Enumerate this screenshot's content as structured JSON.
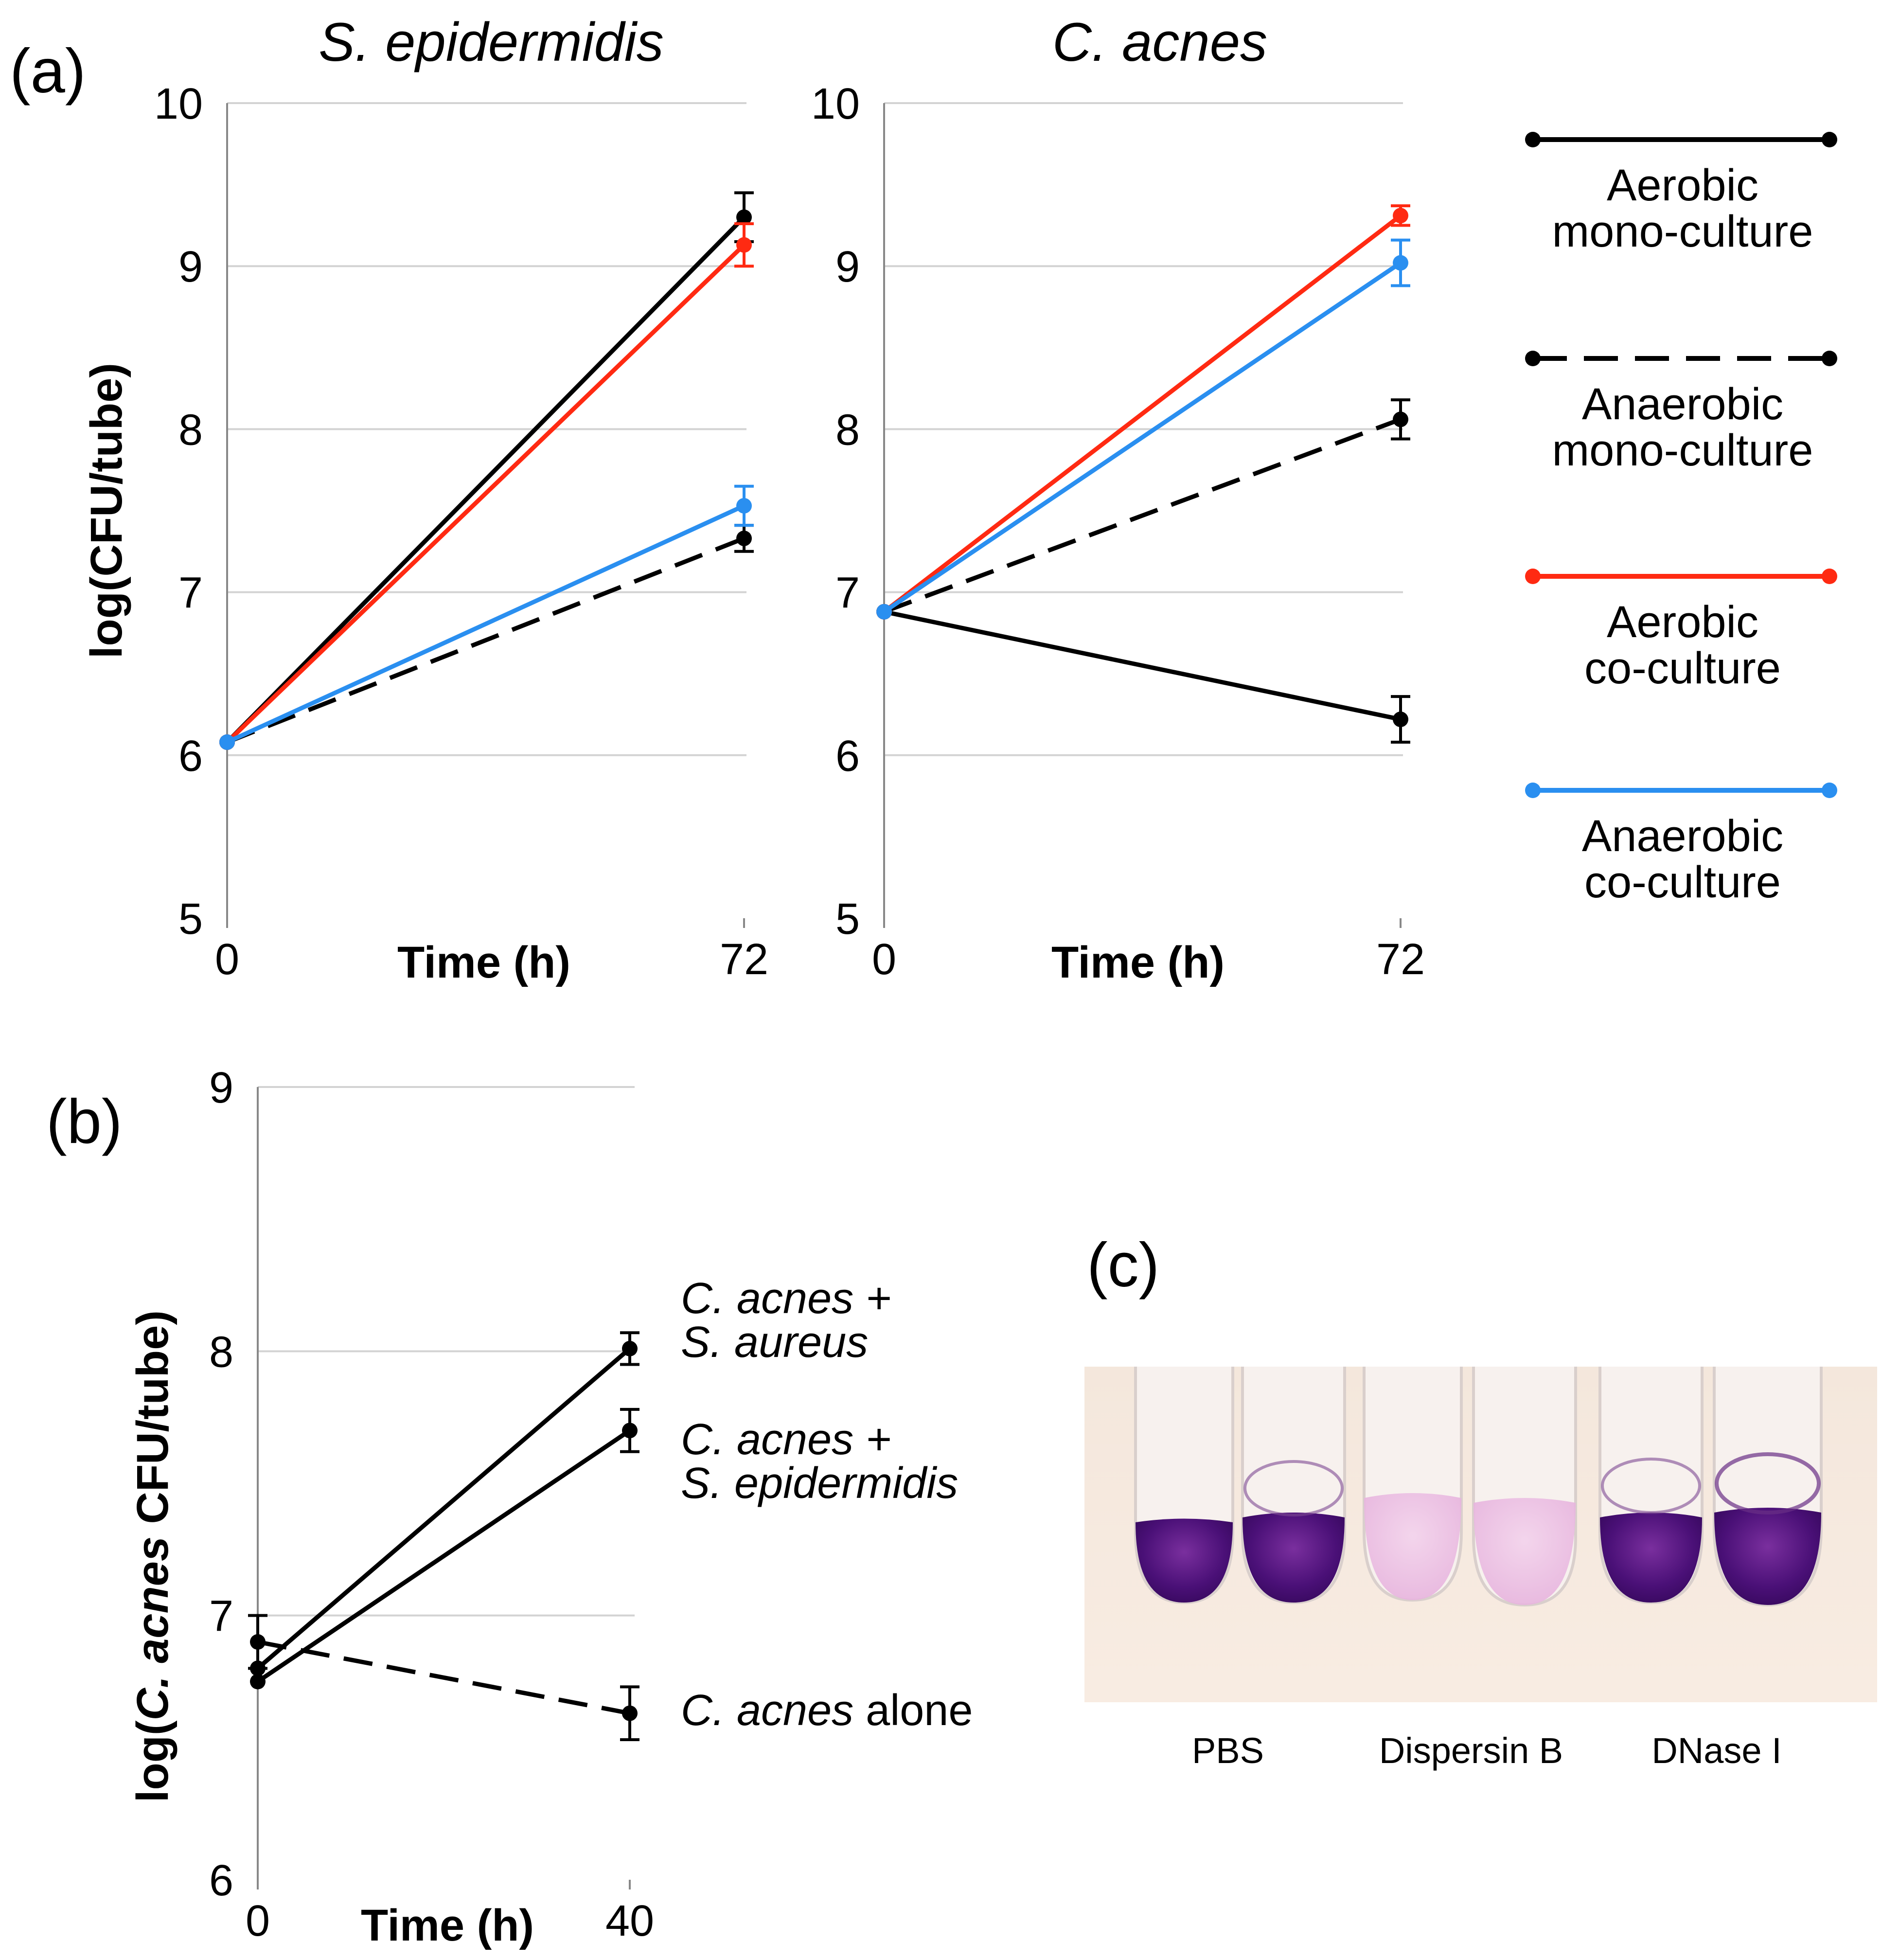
{
  "panels": {
    "a": {
      "label": "(a)"
    },
    "b": {
      "label": "(b)"
    },
    "c": {
      "label": "(c)"
    }
  },
  "legend": [
    {
      "line1": "Aerobic",
      "line2": "mono-culture",
      "color": "#000000",
      "dashed": false
    },
    {
      "line1": "Anaerobic",
      "line2": "mono-culture",
      "color": "#000000",
      "dashed": true
    },
    {
      "line1": "Aerobic",
      "line2": "co-culture",
      "color": "#ff2a12",
      "dashed": false
    },
    {
      "line1": "Anaerobic",
      "line2": "co-culture",
      "color": "#2a8ff0",
      "dashed": false
    }
  ],
  "colors": {
    "black": "#000000",
    "red": "#ff2a12",
    "blue": "#2a8ff0",
    "grid": "#d3d3d3"
  },
  "chart_data": [
    {
      "type": "line",
      "panel": "(a)",
      "title": "S. epidermidis",
      "ylabel": "log(CFU/tube)",
      "xlabel": "Time (h)",
      "x": [
        0,
        72
      ],
      "x_tick_labels": [
        "0",
        "72"
      ],
      "ylim": [
        5,
        10
      ],
      "y_ticks": [
        5,
        6,
        7,
        8,
        9,
        10
      ],
      "grid": true,
      "series": [
        {
          "name": "Aerobic mono-culture",
          "color": "#000000",
          "dashed": false,
          "values": [
            6.08,
            9.3
          ],
          "errors": [
            0.0,
            0.15
          ]
        },
        {
          "name": "Anaerobic mono-culture",
          "color": "#000000",
          "dashed": true,
          "values": [
            6.08,
            7.33
          ],
          "errors": [
            0.0,
            0.08
          ]
        },
        {
          "name": "Aerobic co-culture",
          "color": "#ff2a12",
          "dashed": false,
          "values": [
            6.08,
            9.13
          ],
          "errors": [
            0.0,
            0.13
          ]
        },
        {
          "name": "Anaerobic co-culture",
          "color": "#2a8ff0",
          "dashed": false,
          "values": [
            6.08,
            7.53
          ],
          "errors": [
            0.0,
            0.12
          ]
        }
      ]
    },
    {
      "type": "line",
      "panel": "(a)",
      "title": "C. acnes",
      "ylabel": "",
      "xlabel": "Time (h)",
      "x": [
        0,
        72
      ],
      "x_tick_labels": [
        "0",
        "72"
      ],
      "ylim": [
        5,
        10
      ],
      "y_ticks": [
        5,
        6,
        7,
        8,
        9,
        10
      ],
      "grid": true,
      "series": [
        {
          "name": "Aerobic mono-culture",
          "color": "#000000",
          "dashed": false,
          "values": [
            6.88,
            6.22
          ],
          "errors": [
            0.0,
            0.14
          ]
        },
        {
          "name": "Anaerobic mono-culture",
          "color": "#000000",
          "dashed": true,
          "values": [
            6.88,
            8.06
          ],
          "errors": [
            0.0,
            0.12
          ]
        },
        {
          "name": "Aerobic co-culture",
          "color": "#ff2a12",
          "dashed": false,
          "values": [
            6.88,
            9.31
          ],
          "errors": [
            0.0,
            0.06
          ]
        },
        {
          "name": "Anaerobic co-culture",
          "color": "#2a8ff0",
          "dashed": false,
          "values": [
            6.88,
            9.02
          ],
          "errors": [
            0.0,
            0.14
          ]
        }
      ]
    },
    {
      "type": "line",
      "panel": "(b)",
      "title": "",
      "ylabel_pre": "log(",
      "ylabel_italic": "C. acnes",
      "ylabel_post": " CFU/tube)",
      "xlabel": "Time (h)",
      "x": [
        0,
        40
      ],
      "x_tick_labels": [
        "0",
        "40"
      ],
      "ylim": [
        6,
        9
      ],
      "y_ticks": [
        6,
        7,
        8,
        9
      ],
      "grid": true,
      "series": [
        {
          "name_italic": "C. acnes +",
          "name_italic2": "S. aureus",
          "name_plain": "",
          "color": "#000000",
          "dashed": false,
          "values": [
            6.8,
            8.01
          ],
          "errors": [
            0.0,
            0.06
          ]
        },
        {
          "name_italic": "C. acnes +",
          "name_italic2": "S. epidermidis",
          "name_plain": "",
          "color": "#000000",
          "dashed": false,
          "values": [
            6.75,
            7.7
          ],
          "errors": [
            0.0,
            0.08
          ]
        },
        {
          "name_italic": "C. acnes",
          "name_italic2": "",
          "name_plain": " alone",
          "color": "#000000",
          "dashed": true,
          "values": [
            6.9,
            6.63
          ],
          "errors": [
            0.1,
            0.1
          ]
        }
      ]
    }
  ],
  "photo": {
    "labels": [
      "PBS",
      "Dispersin B",
      "DNase I"
    ]
  }
}
